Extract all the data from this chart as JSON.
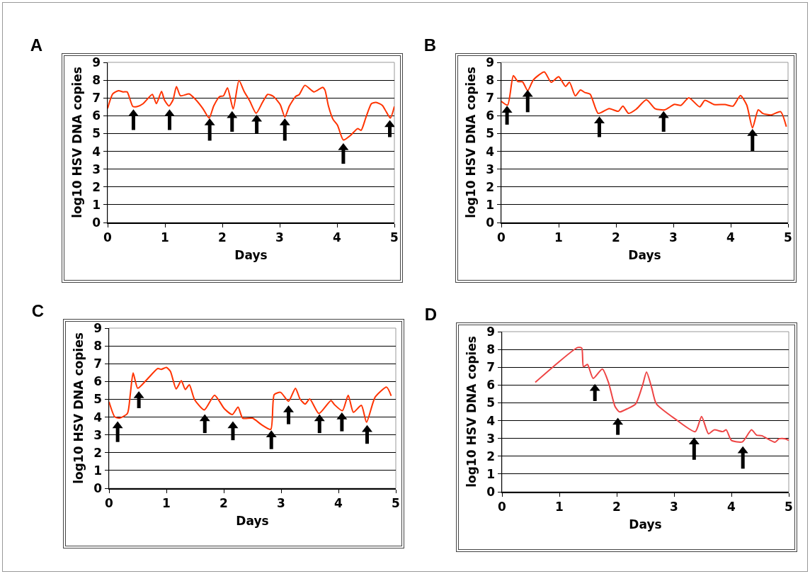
{
  "chart_data": [
    {
      "type": "line",
      "title": "A",
      "xlabel": "Days",
      "ylabel": "log10 HSV DNA copies",
      "xlim": [
        0,
        5
      ],
      "ylim": [
        0,
        9
      ],
      "xticks": [
        0,
        1,
        2,
        3,
        4,
        5
      ],
      "yticks": [
        0,
        1,
        2,
        3,
        4,
        5,
        6,
        7,
        8,
        9
      ],
      "grid": "y",
      "series": [
        {
          "color": "#ff3300",
          "x": [
            0,
            0.09,
            0.19,
            0.27,
            0.34,
            0.44,
            0.52,
            0.62,
            0.78,
            0.85,
            0.94,
            0.99,
            1.07,
            1.14,
            1.2,
            1.27,
            1.42,
            1.52,
            1.66,
            1.77,
            1.85,
            1.95,
            2.02,
            2.09,
            2.19,
            2.29,
            2.38,
            2.48,
            2.59,
            2.7,
            2.79,
            2.89,
            3.01,
            3.09,
            3.17,
            3.28,
            3.34,
            3.44,
            3.6,
            3.75,
            3.79,
            3.85,
            3.93,
            4.01,
            4.11,
            4.24,
            4.36,
            4.42,
            4.5,
            4.6,
            4.68,
            4.79,
            4.86,
            4.93,
            5
          ],
          "values": [
            6.41,
            7.23,
            7.41,
            7.34,
            7.34,
            6.52,
            6.52,
            6.68,
            7.2,
            6.68,
            7.37,
            6.89,
            6.55,
            6.89,
            7.64,
            7.12,
            7.23,
            6.96,
            6.41,
            5.87,
            6.55,
            7.07,
            7.12,
            7.57,
            6.38,
            7.98,
            7.37,
            6.82,
            6.14,
            6.75,
            7.2,
            7.09,
            6.62,
            5.93,
            6.55,
            7.09,
            7.19,
            7.71,
            7.34,
            7.6,
            7.44,
            6.55,
            5.8,
            5.46,
            4.64,
            4.91,
            5.28,
            5.18,
            5.87,
            6.68,
            6.75,
            6.58,
            6.21,
            5.87,
            6.52
          ]
        },
        {
          "type": "scatter",
          "marker": "triangle",
          "color": "#000000",
          "x": [
            0.45,
            1.08,
            1.78,
            2.17,
            2.6,
            3.09,
            4.11,
            4.92
          ],
          "values": [
            6.1,
            6.1,
            5.6,
            6.0,
            5.8,
            5.6,
            4.2,
            5.5
          ],
          "errors": [
            [
              5.2,
              6.1
            ],
            [
              5.2,
              6.1
            ],
            [
              4.6,
              5.6
            ],
            [
              5.1,
              6.0
            ],
            [
              5.0,
              5.8
            ],
            [
              4.6,
              5.6
            ],
            [
              3.3,
              4.2
            ],
            [
              4.8,
              5.5
            ]
          ]
        }
      ]
    },
    {
      "type": "line",
      "title": "B",
      "xlabel": "Days",
      "ylabel": "log10 HSV DNA copies",
      "xlim": [
        0,
        5
      ],
      "ylim": [
        0,
        9
      ],
      "xticks": [
        0,
        1,
        2,
        3,
        4,
        5
      ],
      "yticks": [
        0,
        1,
        2,
        3,
        4,
        5,
        6,
        7,
        8,
        9
      ],
      "grid": "y",
      "series": [
        {
          "color": "#ff3300",
          "x": [
            0,
            0.11,
            0.21,
            0.29,
            0.37,
            0.46,
            0.56,
            0.75,
            0.87,
            1,
            1.12,
            1.19,
            1.29,
            1.38,
            1.46,
            1.55,
            1.69,
            1.88,
            2.04,
            2.12,
            2.22,
            2.35,
            2.53,
            2.68,
            2.85,
            3.02,
            3.13,
            3.27,
            3.46,
            3.55,
            3.71,
            3.9,
            4.04,
            4.17,
            4.28,
            4.38,
            4.48,
            4.56,
            4.7,
            4.87,
            4.97
          ],
          "values": [
            6.81,
            6.6,
            8.25,
            7.92,
            7.91,
            7.41,
            8.02,
            8.46,
            7.88,
            8.19,
            7.65,
            7.88,
            7.12,
            7.45,
            7.3,
            7.21,
            6.13,
            6.4,
            6.25,
            6.54,
            6.13,
            6.36,
            6.9,
            6.4,
            6.33,
            6.64,
            6.58,
            7.01,
            6.5,
            6.87,
            6.63,
            6.63,
            6.54,
            7.14,
            6.6,
            5.32,
            6.33,
            6.13,
            6.04,
            6.23,
            5.39
          ]
        },
        {
          "type": "scatter",
          "marker": "triangle",
          "color": "#000000",
          "x": [
            0.1,
            0.46,
            1.71,
            2.83,
            4.38
          ],
          "values": [
            6.3,
            7.2,
            5.7,
            6.0,
            5.0
          ],
          "errors": [
            [
              5.5,
              6.3
            ],
            [
              6.2,
              7.2
            ],
            [
              4.8,
              5.7
            ],
            [
              5.1,
              6.0
            ],
            [
              4.0,
              5.0
            ]
          ]
        }
      ]
    },
    {
      "type": "line",
      "title": "C",
      "xlabel": "Days",
      "ylabel": "log10 HSV DNA copies",
      "xlim": [
        0,
        5
      ],
      "ylim": [
        0,
        9
      ],
      "xticks": [
        0,
        1,
        2,
        3,
        4,
        5
      ],
      "yticks": [
        0,
        1,
        2,
        3,
        4,
        5,
        6,
        7,
        8,
        9
      ],
      "grid": "y",
      "series": [
        {
          "color": "#ff3300",
          "x": [
            0,
            0.1,
            0.18,
            0.32,
            0.37,
            0.42,
            0.5,
            0.65,
            0.85,
            0.91,
            1,
            1.07,
            1.17,
            1.26,
            1.33,
            1.4,
            1.49,
            1.66,
            1.84,
            2.01,
            2.15,
            2.25,
            2.33,
            2.5,
            2.66,
            2.82,
            2.88,
            2.99,
            3.13,
            3.25,
            3.33,
            3.42,
            3.5,
            3.66,
            3.87,
            3.93,
            4.07,
            4.17,
            4.26,
            4.4,
            4.49,
            4.64,
            4.84,
            4.92
          ],
          "values": [
            4.86,
            4.01,
            3.94,
            4.2,
            5.26,
            6.48,
            5.62,
            6.07,
            6.73,
            6.68,
            6.79,
            6.57,
            5.58,
            6.04,
            5.55,
            5.81,
            4.99,
            4.4,
            5.23,
            4.47,
            4.14,
            4.56,
            3.94,
            3.94,
            3.57,
            3.31,
            5.26,
            5.39,
            4.89,
            5.62,
            5.02,
            4.73,
            5.02,
            4.2,
            4.93,
            4.7,
            4.36,
            5.23,
            4.27,
            4.66,
            3.71,
            5.12,
            5.68,
            5.19
          ]
        },
        {
          "type": "scatter",
          "marker": "triangle",
          "color": "#000000",
          "x": [
            0.15,
            0.52,
            1.67,
            2.16,
            2.83,
            3.13,
            3.67,
            4.06,
            4.5
          ],
          "values": [
            3.5,
            5.2,
            3.9,
            3.5,
            3.0,
            4.4,
            3.9,
            4.0,
            3.3
          ],
          "errors": [
            [
              2.6,
              3.5
            ],
            [
              4.5,
              5.2
            ],
            [
              3.1,
              3.9
            ],
            [
              2.7,
              3.5
            ],
            [
              2.2,
              3.0
            ],
            [
              3.6,
              4.4
            ],
            [
              3.1,
              3.9
            ],
            [
              3.2,
              4.0
            ],
            [
              2.5,
              3.3
            ]
          ]
        }
      ]
    },
    {
      "type": "line",
      "title": "D",
      "xlabel": "Days",
      "ylabel": "log10 HSV DNA copies",
      "xlim": [
        0,
        5
      ],
      "ylim": [
        0,
        9
      ],
      "xticks": [
        0,
        1,
        2,
        3,
        4,
        5
      ],
      "yticks": [
        0,
        1,
        2,
        3,
        4,
        5,
        6,
        7,
        8,
        9
      ],
      "grid": "y",
      "series": [
        {
          "color": "#ee4444",
          "x": [
            0.58,
            1.32,
            1.39,
            1.42,
            1.49,
            1.59,
            1.75,
            1.86,
            1.97,
            2.05,
            2.18,
            2.33,
            2.45,
            2.52,
            2.61,
            2.69,
            3.03,
            3.37,
            3.48,
            3.6,
            3.7,
            3.85,
            3.91,
            4,
            4.19,
            4.35,
            4.44,
            4.53,
            4.76,
            4.83,
            4.94,
            5
          ],
          "values": [
            6.15,
            8.11,
            8.08,
            7.03,
            7.16,
            6.37,
            6.9,
            6.11,
            4.8,
            4.49,
            4.66,
            4.93,
            5.98,
            6.73,
            5.85,
            4.95,
            4.07,
            3.38,
            4.23,
            3.26,
            3.48,
            3.38,
            3.48,
            2.89,
            2.8,
            3.48,
            3.18,
            3.15,
            2.79,
            2.98,
            2.98,
            2.89
          ]
        },
        {
          "type": "scatter",
          "marker": "triangle",
          "color": "#000000",
          "x": [
            1.62,
            2.02,
            3.35,
            4.2
          ],
          "values": [
            5.8,
            3.9,
            2.8,
            2.3
          ],
          "errors": [
            [
              5.1,
              5.8
            ],
            [
              3.2,
              3.9
            ],
            [
              1.8,
              2.8
            ],
            [
              1.3,
              2.3
            ]
          ]
        }
      ]
    }
  ]
}
